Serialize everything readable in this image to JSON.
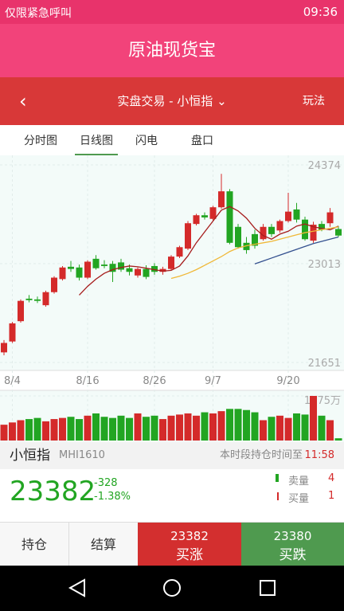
{
  "status_bar": {
    "carrier": "仅限紧急呼叫",
    "time": "09:36"
  },
  "header": {
    "title": "原油现货宝"
  },
  "nav": {
    "title": "实盘交易 - 小恒指",
    "action": "玩法"
  },
  "tabs": [
    "分时图",
    "日线图",
    "闪电",
    "盘口"
  ],
  "chart_data": {
    "type": "candlestick",
    "categories": [
      null,
      "8/4",
      null,
      null,
      null,
      null,
      null,
      null,
      null,
      null,
      "8/16",
      null,
      null,
      null,
      null,
      null,
      null,
      null,
      "8/26",
      null,
      null,
      null,
      null,
      null,
      null,
      "9/7",
      null,
      null,
      null,
      null,
      null,
      null,
      null,
      null,
      "9/20",
      null,
      null,
      null,
      null,
      null,
      null
    ],
    "ohlc": [
      [
        21790,
        21960,
        21750,
        21920
      ],
      [
        21940,
        22210,
        21920,
        22190
      ],
      [
        22220,
        22520,
        22200,
        22500
      ],
      [
        22530,
        22580,
        22480,
        22510
      ],
      [
        22520,
        22560,
        22470,
        22500
      ],
      [
        22440,
        22640,
        22420,
        22620
      ],
      [
        22620,
        22840,
        22600,
        22820
      ],
      [
        22800,
        22980,
        22780,
        22960
      ],
      [
        22970,
        23050,
        22900,
        22940
      ],
      [
        22960,
        23000,
        22780,
        22820
      ],
      [
        22820,
        23060,
        22800,
        23040
      ],
      [
        23080,
        23130,
        22930,
        22950
      ],
      [
        23000,
        23060,
        22950,
        22980
      ],
      [
        23010,
        23050,
        22760,
        22900
      ],
      [
        23030,
        23080,
        22900,
        22930
      ],
      [
        22950,
        23000,
        22850,
        22900
      ],
      [
        22850,
        22960,
        22820,
        22940
      ],
      [
        22940,
        22990,
        22800,
        22830
      ],
      [
        22980,
        23020,
        22860,
        22900
      ],
      [
        22900,
        22970,
        22860,
        22940
      ],
      [
        22940,
        23130,
        22920,
        23110
      ],
      [
        23110,
        23260,
        23090,
        23240
      ],
      [
        23220,
        23600,
        23200,
        23570
      ],
      [
        23560,
        23700,
        23540,
        23680
      ],
      [
        23680,
        23720,
        23620,
        23650
      ],
      [
        23630,
        23810,
        23610,
        23790
      ],
      [
        23790,
        24250,
        23770,
        24010
      ],
      [
        24010,
        24040,
        23280,
        23300
      ],
      [
        23520,
        23560,
        23220,
        23240
      ],
      [
        23300,
        23380,
        23150,
        23200
      ],
      [
        23420,
        23480,
        23220,
        23260
      ],
      [
        23350,
        23560,
        23330,
        23520
      ],
      [
        23520,
        23560,
        23380,
        23420
      ],
      [
        23470,
        23620,
        23440,
        23600
      ],
      [
        23600,
        23990,
        23580,
        23730
      ],
      [
        23760,
        23850,
        23580,
        23620
      ],
      [
        23620,
        23660,
        23330,
        23350
      ],
      [
        23330,
        23590,
        23300,
        23550
      ],
      [
        23560,
        23600,
        23460,
        23480
      ],
      [
        23570,
        23780,
        23520,
        23720
      ],
      [
        23490,
        23530,
        23380,
        23400
      ]
    ],
    "up_color": "#d42a2a",
    "down_color": "#22a522",
    "ylim": [
      21651,
      24374
    ],
    "yticks": [
      21651,
      23013,
      24374
    ],
    "moving_averages": [
      {
        "color": "#a61c1c",
        "values": [
          null,
          null,
          null,
          null,
          null,
          null,
          null,
          null,
          null,
          22580,
          22700,
          22800,
          22880,
          22930,
          22960,
          22980,
          22970,
          22950,
          22930,
          22910,
          22920,
          22980,
          23120,
          23300,
          23450,
          23600,
          23750,
          23800,
          23740,
          23640,
          23500,
          23400,
          23350,
          23420,
          23460,
          23530,
          23560,
          23520,
          23500,
          23480,
          23530
        ]
      },
      {
        "color": "#f0b838",
        "values": [
          null,
          null,
          null,
          null,
          null,
          null,
          null,
          null,
          null,
          null,
          null,
          null,
          null,
          null,
          null,
          null,
          null,
          null,
          null,
          null,
          22810,
          22840,
          22880,
          22930,
          22990,
          23050,
          23110,
          23180,
          23230,
          23260,
          23280,
          23300,
          23320,
          23350,
          23380,
          23410,
          23440,
          23460,
          23480,
          23500,
          23520
        ]
      },
      {
        "color": "#33508f",
        "values": [
          null,
          null,
          null,
          null,
          null,
          null,
          null,
          null,
          null,
          null,
          null,
          null,
          null,
          null,
          null,
          null,
          null,
          null,
          null,
          null,
          null,
          null,
          null,
          null,
          null,
          null,
          null,
          null,
          null,
          null,
          23010,
          23050,
          23090,
          23130,
          23170,
          23210,
          23250,
          23290,
          23320,
          23350,
          23380
        ]
      }
    ],
    "volume": {
      "values": [
        700,
        800,
        900,
        950,
        1000,
        850,
        950,
        1000,
        1050,
        950,
        1100,
        1200,
        1050,
        1000,
        1100,
        1000,
        1200,
        1050,
        1100,
        950,
        1100,
        1150,
        1200,
        1100,
        1250,
        1200,
        1300,
        1400,
        1400,
        1350,
        1250,
        900,
        1050,
        1100,
        1000,
        1200,
        1150,
        1975,
        1100,
        900,
        100
      ],
      "ylim": [
        0,
        1975
      ],
      "yticks": [
        {
          "value": 1975,
          "label": "1975万"
        }
      ]
    }
  },
  "info": {
    "name": "小恒指",
    "code": "MHI1610",
    "hold_label": "本时段持仓时间至",
    "hold_time": "11:58"
  },
  "quote": {
    "price": "23382",
    "change": "-328",
    "change_pct": "-1.38%",
    "sell_label": "卖量",
    "sell_qty": "4",
    "buy_label": "买量",
    "buy_qty": "1"
  },
  "footer": {
    "position": "持仓",
    "settle": "结算",
    "buy_up_price": "23382",
    "buy_up": "买涨",
    "buy_down_price": "23380",
    "buy_down": "买跌"
  }
}
